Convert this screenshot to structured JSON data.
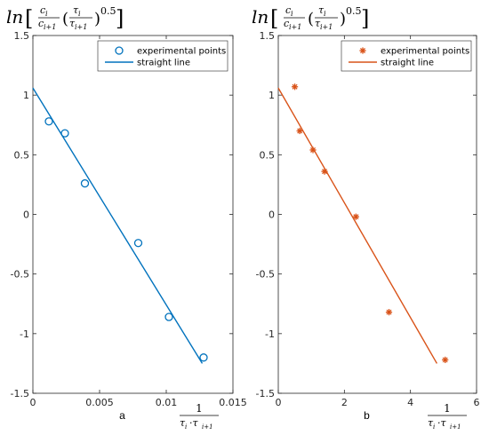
{
  "chart_data": [
    {
      "type": "scatter",
      "panel_label": "a",
      "ylabel_main": "ln",
      "ylabel_num": "c",
      "ylabel_num_sub": "i",
      "ylabel_den": "c",
      "ylabel_den_sub": "i+1",
      "ylabel_tau_num": "τ",
      "ylabel_tau_num_sub": "i",
      "ylabel_tau_den": "τ",
      "ylabel_tau_den_sub": "i+1",
      "ylabel_exp": "0.5",
      "xlabel_num": "1",
      "xlabel_den": "τ",
      "xlabel_den_sub1": "i",
      "xlabel_den_mid": "·τ",
      "xlabel_den_sub2": "i+1",
      "xlim": [
        0,
        0.015
      ],
      "ylim": [
        -1.5,
        1.5
      ],
      "xticks": [
        0,
        0.005,
        0.01,
        0.015
      ],
      "xtick_labels": [
        "0",
        "0.005",
        "0.01",
        "0.015"
      ],
      "yticks": [
        -1.5,
        -1,
        -0.5,
        0,
        0.5,
        1,
        1.5
      ],
      "ytick_labels": [
        "-1.5",
        "-1",
        "-0.5",
        "0",
        "0.5",
        "1",
        "1.5"
      ],
      "series": [
        {
          "name": "experimental points",
          "marker": "circle",
          "color": "#0072BD",
          "x": [
            0.0012,
            0.0024,
            0.0039,
            0.0079,
            0.0102,
            0.0128
          ],
          "y": [
            0.78,
            0.68,
            0.26,
            -0.24,
            -0.86,
            -1.2
          ]
        },
        {
          "name": "straight line",
          "kind": "line",
          "color": "#0072BD",
          "x": [
            0,
            0.0127
          ],
          "y": [
            1.06,
            -1.25
          ]
        }
      ],
      "legend": "top-right",
      "grid": false
    },
    {
      "type": "scatter",
      "panel_label": "b",
      "ylabel_main": "ln",
      "ylabel_num": "c",
      "ylabel_num_sub": "i",
      "ylabel_den": "c",
      "ylabel_den_sub": "i+1",
      "ylabel_tau_num": "τ",
      "ylabel_tau_num_sub": "i",
      "ylabel_tau_den": "τ",
      "ylabel_tau_den_sub": "i+1",
      "ylabel_exp": "0.5",
      "xlabel_num": "1",
      "xlabel_den": "τ",
      "xlabel_den_sub1": "i",
      "xlabel_den_mid": "·τ",
      "xlabel_den_sub2": "i+1",
      "xlim": [
        0,
        6
      ],
      "ylim": [
        -1.5,
        1.5
      ],
      "xticks": [
        0,
        2,
        4,
        6
      ],
      "xtick_labels": [
        "0",
        "2",
        "4",
        "6"
      ],
      "yticks": [
        -1.5,
        -1,
        -0.5,
        0,
        0.5,
        1,
        1.5
      ],
      "ytick_labels": [
        "-1.5",
        "-1",
        "-0.5",
        "0",
        "0.5",
        "1",
        "1.5"
      ],
      "series": [
        {
          "name": "experimental points",
          "marker": "asterisk",
          "color": "#D95319",
          "x": [
            0.5,
            0.65,
            1.05,
            1.4,
            2.35,
            3.35,
            5.05
          ],
          "y": [
            1.07,
            0.7,
            0.54,
            0.36,
            -0.02,
            -0.82,
            -1.22
          ]
        },
        {
          "name": "straight line",
          "kind": "line",
          "color": "#D95319",
          "x": [
            0,
            4.8
          ],
          "y": [
            1.06,
            -1.25
          ]
        }
      ],
      "legend": "top-right",
      "grid": false
    }
  ]
}
